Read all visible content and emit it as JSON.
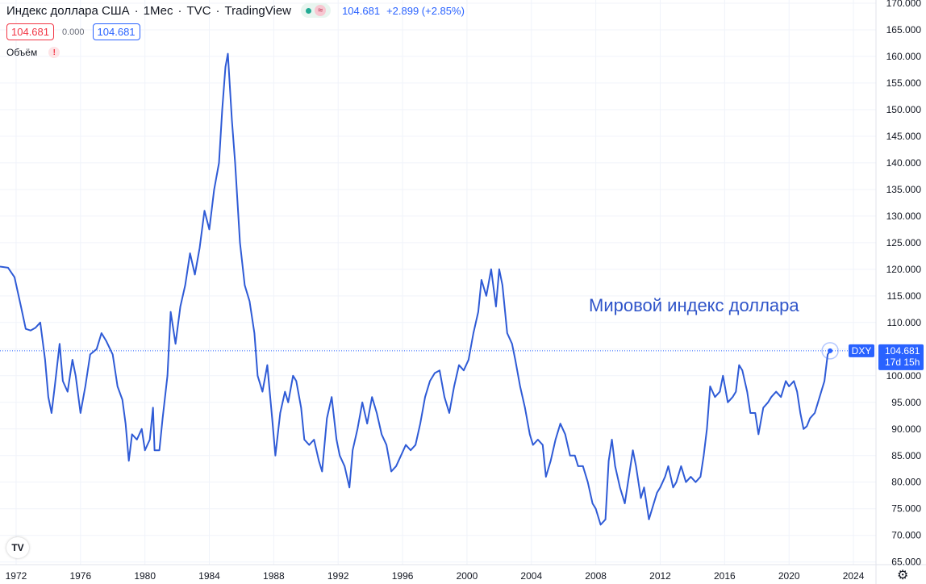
{
  "header": {
    "title": "Индекс доллара США",
    "interval": "1Мес",
    "source": "TVC",
    "platform": "TradingView",
    "status_icon": "green-dot-icon",
    "wave_icon": "≈",
    "last_value": "104.681",
    "change": "+2.899 (+2.85%)"
  },
  "legend": {
    "sell": "104.681",
    "spread": "0.000",
    "buy": "104.681"
  },
  "volume": {
    "label": "Объём",
    "warning": "!"
  },
  "logo": "TV",
  "settings_icon": "gear-icon",
  "price_badge": {
    "ticker": "DXY",
    "value": "104.681",
    "countdown": "17d 15h"
  },
  "colors": {
    "line": "#2f5bd6",
    "accent": "#2962ff",
    "badge": "#2962ff",
    "negative": "#f23645"
  },
  "chart_data": {
    "type": "line",
    "annotation": "Мировой индекс доллара",
    "ylim": [
      64.5,
      170.6
    ],
    "xlim": [
      1971.0,
      2025.4
    ],
    "grid": true,
    "y_ticks": [
      "65.000",
      "70.000",
      "75.000",
      "80.000",
      "85.000",
      "90.000",
      "95.000",
      "100.000",
      "105.000",
      "110.000",
      "115.000",
      "120.000",
      "125.000",
      "130.000",
      "135.000",
      "140.000",
      "145.000",
      "150.000",
      "155.000",
      "160.000",
      "165.000",
      "170.000"
    ],
    "x_ticks": [
      "1972",
      "1976",
      "1980",
      "1984",
      "1988",
      "1992",
      "1996",
      "2000",
      "2004",
      "2008",
      "2012",
      "2016",
      "2020",
      "2024"
    ],
    "last_price_line": 104.681,
    "series": [
      {
        "points": [
          [
            1971.0,
            120.5
          ],
          [
            1971.5,
            120.3
          ],
          [
            1971.9,
            118.5
          ],
          [
            1972.3,
            113.0
          ],
          [
            1972.6,
            108.8
          ],
          [
            1972.9,
            108.5
          ],
          [
            1973.2,
            109.0
          ],
          [
            1973.5,
            110.0
          ],
          [
            1973.8,
            103.0
          ],
          [
            1974.0,
            96.0
          ],
          [
            1974.2,
            93.0
          ],
          [
            1974.4,
            98.0
          ],
          [
            1974.7,
            106.0
          ],
          [
            1974.9,
            99.0
          ],
          [
            1975.2,
            97.0
          ],
          [
            1975.5,
            103.0
          ],
          [
            1975.7,
            100.0
          ],
          [
            1976.0,
            93.0
          ],
          [
            1976.3,
            98.0
          ],
          [
            1976.6,
            104.0
          ],
          [
            1977.0,
            105.0
          ],
          [
            1977.3,
            108.0
          ],
          [
            1977.6,
            106.5
          ],
          [
            1978.0,
            104.0
          ],
          [
            1978.3,
            98.0
          ],
          [
            1978.6,
            95.5
          ],
          [
            1978.8,
            91.0
          ],
          [
            1979.0,
            84.0
          ],
          [
            1979.2,
            89.0
          ],
          [
            1979.5,
            88.0
          ],
          [
            1979.8,
            90.0
          ],
          [
            1980.0,
            86.0
          ],
          [
            1980.3,
            88.0
          ],
          [
            1980.5,
            94.0
          ],
          [
            1980.6,
            86.0
          ],
          [
            1980.9,
            86.0
          ],
          [
            1981.1,
            92.0
          ],
          [
            1981.4,
            100.0
          ],
          [
            1981.6,
            112.0
          ],
          [
            1981.9,
            106.0
          ],
          [
            1982.2,
            113.0
          ],
          [
            1982.5,
            117.0
          ],
          [
            1982.8,
            123.0
          ],
          [
            1983.1,
            119.0
          ],
          [
            1983.4,
            124.0
          ],
          [
            1983.7,
            131.0
          ],
          [
            1984.0,
            127.5
          ],
          [
            1984.3,
            135.0
          ],
          [
            1984.6,
            140.0
          ],
          [
            1984.8,
            150.0
          ],
          [
            1985.0,
            158.0
          ],
          [
            1985.15,
            160.5
          ],
          [
            1985.4,
            148.0
          ],
          [
            1985.6,
            140.0
          ],
          [
            1985.9,
            125.0
          ],
          [
            1986.2,
            117.0
          ],
          [
            1986.5,
            114.0
          ],
          [
            1986.8,
            108.0
          ],
          [
            1987.0,
            100.0
          ],
          [
            1987.3,
            97.0
          ],
          [
            1987.6,
            102.0
          ],
          [
            1987.9,
            92.0
          ],
          [
            1988.1,
            85.0
          ],
          [
            1988.4,
            93.0
          ],
          [
            1988.7,
            97.0
          ],
          [
            1988.9,
            95.0
          ],
          [
            1989.2,
            100.0
          ],
          [
            1989.4,
            99.0
          ],
          [
            1989.7,
            94.0
          ],
          [
            1989.9,
            88.0
          ],
          [
            1990.2,
            87.0
          ],
          [
            1990.5,
            88.0
          ],
          [
            1990.8,
            84.0
          ],
          [
            1991.0,
            82.0
          ],
          [
            1991.3,
            92.0
          ],
          [
            1991.6,
            96.0
          ],
          [
            1991.9,
            88.0
          ],
          [
            1992.1,
            85.0
          ],
          [
            1992.4,
            83.0
          ],
          [
            1992.7,
            79.0
          ],
          [
            1992.9,
            86.0
          ],
          [
            1993.2,
            90.0
          ],
          [
            1993.5,
            95.0
          ],
          [
            1993.8,
            91.0
          ],
          [
            1994.1,
            96.0
          ],
          [
            1994.4,
            93.0
          ],
          [
            1994.7,
            89.0
          ],
          [
            1995.0,
            87.0
          ],
          [
            1995.3,
            82.0
          ],
          [
            1995.6,
            83.0
          ],
          [
            1995.9,
            85.0
          ],
          [
            1996.2,
            87.0
          ],
          [
            1996.5,
            86.0
          ],
          [
            1996.8,
            87.0
          ],
          [
            1997.1,
            91.0
          ],
          [
            1997.4,
            96.0
          ],
          [
            1997.7,
            99.0
          ],
          [
            1998.0,
            100.5
          ],
          [
            1998.3,
            101.0
          ],
          [
            1998.6,
            96.0
          ],
          [
            1998.9,
            93.0
          ],
          [
            1999.2,
            98.0
          ],
          [
            1999.5,
            102.0
          ],
          [
            1999.8,
            101.0
          ],
          [
            2000.1,
            103.0
          ],
          [
            2000.4,
            108.0
          ],
          [
            2000.7,
            112.0
          ],
          [
            2000.9,
            118.0
          ],
          [
            2001.2,
            115.0
          ],
          [
            2001.5,
            120.0
          ],
          [
            2001.8,
            113.0
          ],
          [
            2002.0,
            120.0
          ],
          [
            2002.2,
            117.0
          ],
          [
            2002.5,
            108.0
          ],
          [
            2002.8,
            106.0
          ],
          [
            2003.0,
            103.0
          ],
          [
            2003.3,
            98.0
          ],
          [
            2003.6,
            94.0
          ],
          [
            2003.9,
            89.0
          ],
          [
            2004.1,
            87.0
          ],
          [
            2004.4,
            88.0
          ],
          [
            2004.7,
            87.0
          ],
          [
            2004.9,
            81.0
          ],
          [
            2005.2,
            84.0
          ],
          [
            2005.5,
            88.0
          ],
          [
            2005.8,
            91.0
          ],
          [
            2006.1,
            89.0
          ],
          [
            2006.4,
            85.0
          ],
          [
            2006.7,
            85.0
          ],
          [
            2006.9,
            83.0
          ],
          [
            2007.2,
            83.0
          ],
          [
            2007.5,
            80.0
          ],
          [
            2007.8,
            76.0
          ],
          [
            2008.0,
            75.0
          ],
          [
            2008.3,
            72.0
          ],
          [
            2008.6,
            73.0
          ],
          [
            2008.8,
            84.0
          ],
          [
            2009.0,
            88.0
          ],
          [
            2009.2,
            83.0
          ],
          [
            2009.5,
            79.0
          ],
          [
            2009.8,
            76.0
          ],
          [
            2010.0,
            80.0
          ],
          [
            2010.3,
            86.0
          ],
          [
            2010.5,
            83.0
          ],
          [
            2010.8,
            77.0
          ],
          [
            2011.0,
            79.0
          ],
          [
            2011.3,
            73.0
          ],
          [
            2011.6,
            76.0
          ],
          [
            2011.8,
            78.0
          ],
          [
            2012.0,
            79.0
          ],
          [
            2012.3,
            81.0
          ],
          [
            2012.5,
            83.0
          ],
          [
            2012.8,
            79.0
          ],
          [
            2013.0,
            80.0
          ],
          [
            2013.3,
            83.0
          ],
          [
            2013.6,
            80.0
          ],
          [
            2013.9,
            81.0
          ],
          [
            2014.2,
            80.0
          ],
          [
            2014.5,
            81.0
          ],
          [
            2014.7,
            85.0
          ],
          [
            2014.9,
            90.0
          ],
          [
            2015.1,
            98.0
          ],
          [
            2015.4,
            96.0
          ],
          [
            2015.7,
            97.0
          ],
          [
            2015.9,
            100.0
          ],
          [
            2016.2,
            95.0
          ],
          [
            2016.5,
            96.0
          ],
          [
            2016.7,
            97.0
          ],
          [
            2016.9,
            102.0
          ],
          [
            2017.1,
            101.0
          ],
          [
            2017.4,
            97.0
          ],
          [
            2017.6,
            93.0
          ],
          [
            2017.9,
            93.0
          ],
          [
            2018.1,
            89.0
          ],
          [
            2018.4,
            94.0
          ],
          [
            2018.7,
            95.0
          ],
          [
            2018.9,
            96.0
          ],
          [
            2019.2,
            97.0
          ],
          [
            2019.5,
            96.0
          ],
          [
            2019.8,
            99.0
          ],
          [
            2020.0,
            98.0
          ],
          [
            2020.3,
            99.0
          ],
          [
            2020.5,
            97.0
          ],
          [
            2020.7,
            93.0
          ],
          [
            2020.9,
            90.0
          ],
          [
            2021.1,
            90.5
          ],
          [
            2021.3,
            92.0
          ],
          [
            2021.6,
            93.0
          ],
          [
            2021.8,
            95.0
          ],
          [
            2022.0,
            97.0
          ],
          [
            2022.2,
            99.0
          ],
          [
            2022.4,
            104.0
          ],
          [
            2022.55,
            104.681
          ]
        ]
      }
    ]
  }
}
